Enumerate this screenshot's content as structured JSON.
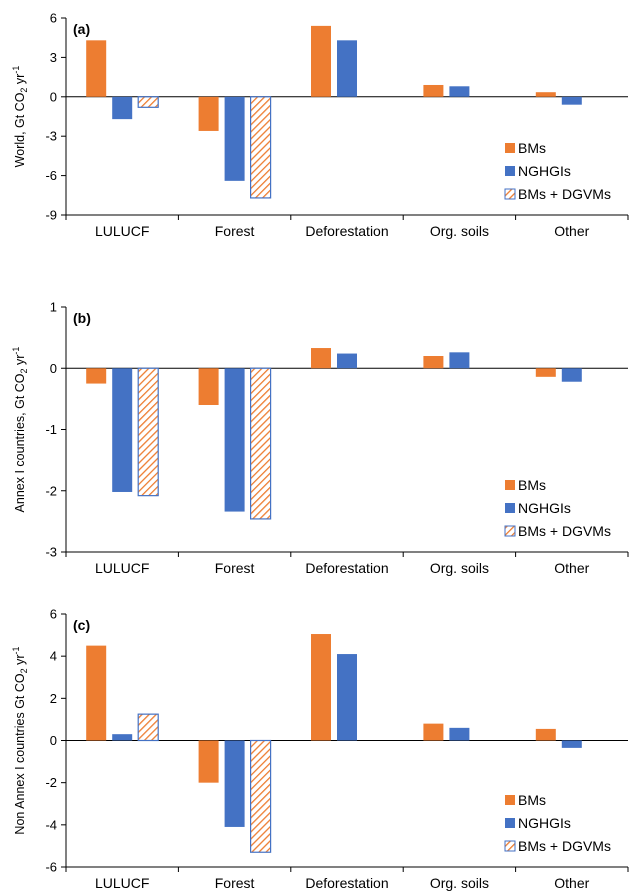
{
  "colors": {
    "bms": "#ED7D31",
    "nghgis": "#4472C4",
    "bms_dgvms": "#ED7D31",
    "bms_dgvms_border": "#4472C4",
    "axis": "#000000",
    "grid": "#d9d9d9"
  },
  "chart_data": [
    {
      "type": "bar",
      "panel_label": "(a)",
      "ylabel": "World, Gt CO₂ yr⁻¹",
      "ylabel_main": "World, Gt CO",
      "ylabel_sub": "2",
      "ylabel_mid": " yr",
      "ylabel_sup": "-1",
      "ylim": [
        -9,
        6
      ],
      "yticks": [
        -9,
        -6,
        -3,
        0,
        3,
        6
      ],
      "ytick_labels": [
        "-9",
        "-6",
        "-3",
        "0",
        "3",
        "6"
      ],
      "categories": [
        "LULUCF",
        "Forest",
        "Deforestation",
        "Org. soils",
        "Other"
      ],
      "series": [
        {
          "name": "BMs",
          "values": [
            4.3,
            -2.6,
            5.4,
            0.9,
            0.35
          ]
        },
        {
          "name": "NGHGIs",
          "values": [
            -1.7,
            -6.4,
            4.3,
            0.8,
            -0.6
          ]
        },
        {
          "name": "BMs + DGVMs",
          "values": [
            -0.8,
            -7.7,
            null,
            null,
            null
          ]
        }
      ]
    },
    {
      "type": "bar",
      "panel_label": "(b)",
      "ylabel": "Annex I countries, Gt CO₂ yr⁻¹",
      "ylabel_main": "Annex I countries, Gt CO",
      "ylabel_sub": "2",
      "ylabel_mid": " yr",
      "ylabel_sup": "-1",
      "ylim": [
        -3,
        1
      ],
      "yticks": [
        -3,
        -2,
        -1,
        0,
        1
      ],
      "ytick_labels": [
        "-3",
        "-2",
        "-1",
        "0",
        "1"
      ],
      "categories": [
        "LULUCF",
        "Forest",
        "Deforestation",
        "Org. soils",
        "Other"
      ],
      "series": [
        {
          "name": "BMs",
          "values": [
            -0.25,
            -0.6,
            0.33,
            0.2,
            -0.14
          ]
        },
        {
          "name": "NGHGIs",
          "values": [
            -2.02,
            -2.34,
            0.24,
            0.26,
            -0.22
          ]
        },
        {
          "name": "BMs + DGVMs",
          "values": [
            -2.08,
            -2.46,
            null,
            null,
            null
          ]
        }
      ]
    },
    {
      "type": "bar",
      "panel_label": "(c)",
      "ylabel": "Non Annex I countries Gt CO₂ yr⁻¹",
      "ylabel_main": "Non Annex I countries Gt CO",
      "ylabel_sub": "2",
      "ylabel_mid": " yr",
      "ylabel_sup": "-1",
      "ylim": [
        -6,
        6
      ],
      "yticks": [
        -6,
        -4,
        -2,
        0,
        2,
        4,
        6
      ],
      "ytick_labels": [
        "-6",
        "-4",
        "-2",
        "0",
        "2",
        "4",
        "6"
      ],
      "categories": [
        "LULUCF",
        "Forest",
        "Deforestation",
        "Org. soils",
        "Other"
      ],
      "series": [
        {
          "name": "BMs",
          "values": [
            4.5,
            -2.0,
            5.05,
            0.8,
            0.55
          ]
        },
        {
          "name": "NGHGIs",
          "values": [
            0.3,
            -4.1,
            4.1,
            0.6,
            -0.35
          ]
        },
        {
          "name": "BMs + DGVMs",
          "values": [
            1.25,
            -5.3,
            null,
            null,
            null
          ]
        }
      ]
    }
  ]
}
